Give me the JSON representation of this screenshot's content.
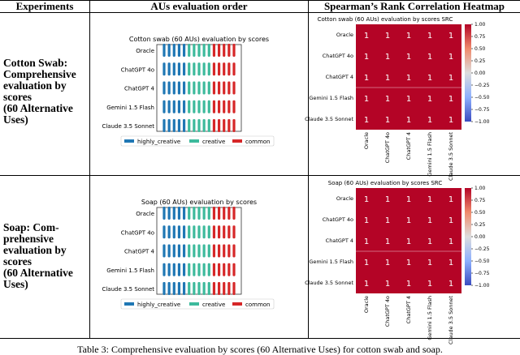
{
  "table": {
    "headers": [
      "Experiments",
      "AUs evaluation order",
      "Spearman’s Rank Correlation Heatmap"
    ],
    "rows": [
      {
        "experiment_lines": [
          "Cotton Swab:",
          "Comprehensive",
          "evaluation by",
          "scores",
          "(60 Alternative"
        ],
        "experiment_last": "Uses)",
        "dot_chart": {
          "title": "Cotton swab (60 AUs) evaluation by scores",
          "y_labels": [
            "Oracle",
            "ChatGPT 4o",
            "ChatGPT 4",
            "Gemini 1.5 Flash",
            "Claude 3.5 Sonnet"
          ],
          "legend": [
            "highly_creative",
            "creative",
            "common"
          ]
        },
        "heatmap": {
          "title": "Cotton swab (60 AUs) evaluation by scores SRC",
          "labels": [
            "Oracle",
            "ChatGPT 4o",
            "ChatGPT 4",
            "Gemini 1.5 Flash",
            "Claude 3.5 Sonnet"
          ],
          "cell_value": "1",
          "colorbar_ticks": [
            "1.00",
            "0.75",
            "0.50",
            "0.25",
            "0.00",
            "−0.25",
            "−0.50",
            "−0.75",
            "−1.00"
          ]
        }
      },
      {
        "experiment_lines": [
          "Soap: Com-",
          "prehensive",
          "evaluation by",
          "scores",
          "(60 Alternative"
        ],
        "experiment_last": "Uses)",
        "dot_chart": {
          "title": "Soap (60 AUs) evaluation by scores",
          "y_labels": [
            "Oracle",
            "ChatGPT 4o",
            "ChatGPT 4",
            "Gemini 1.5 Flash",
            "Claude 3.5 Sonnet"
          ],
          "legend": [
            "highly_creative",
            "creative",
            "common"
          ]
        },
        "heatmap": {
          "title": "Soap (60 AUs) evaluation by scores SRC",
          "labels": [
            "Oracle",
            "ChatGPT 4o",
            "ChatGPT 4",
            "Gemini 1.5 Flash",
            "Claude 3.5 Sonnet"
          ],
          "cell_value": "1",
          "colorbar_ticks": [
            "1.00",
            "0.75",
            "0.50",
            "0.25",
            "0.00",
            "−0.25",
            "−0.50",
            "−0.75",
            "−1.00"
          ]
        }
      }
    ]
  },
  "colors": {
    "highly_creative": "#1f77b4",
    "creative": "#3dba9c",
    "common": "#d62728",
    "heatmap_cell": "#b40426"
  },
  "caption": "Table 3: Comprehensive evaluation by scores (60 Alternative Uses) for cotton swab and soap."
}
